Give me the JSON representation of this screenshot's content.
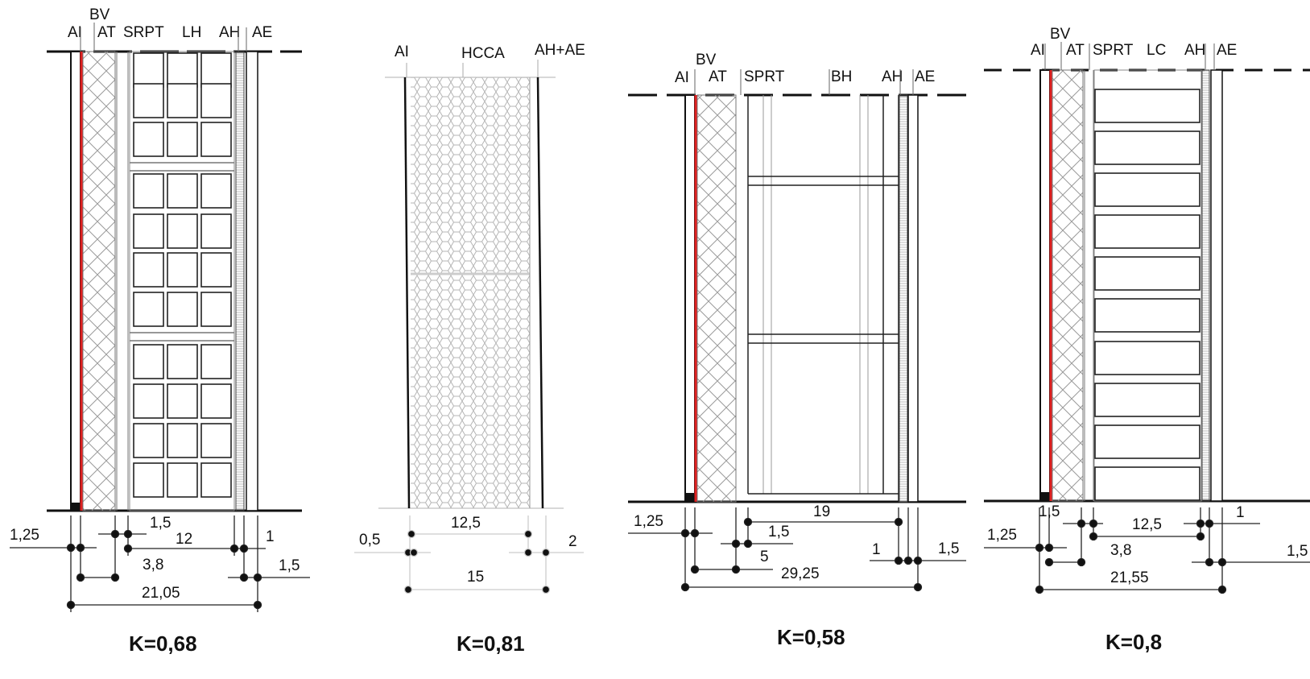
{
  "panels": [
    {
      "labels": [
        "AI",
        "BV",
        "AT",
        "SRPT",
        "LH",
        "AH",
        "AE"
      ],
      "dims": [
        "1,25",
        "1,5",
        "12",
        "1",
        "3,8",
        "1,5",
        "21,05"
      ],
      "k": "K=0,68"
    },
    {
      "labels": [
        "AI",
        "HCCA",
        "AH+AE"
      ],
      "dims": [
        "0,5",
        "12,5",
        "2",
        "15"
      ],
      "k": "K=0,81"
    },
    {
      "labels": [
        "AI",
        "BV",
        "AT",
        "SPRT",
        "BH",
        "AH",
        "AE"
      ],
      "dims": [
        "1,25",
        "19",
        "1,5",
        "5",
        "29,25",
        "1",
        "1,5"
      ],
      "k": "K=0,58"
    },
    {
      "labels": [
        "AI",
        "BV",
        "AT",
        "SPRT",
        "LC",
        "AH",
        "AE"
      ],
      "dims": [
        "1,25",
        "1,5",
        "12,5",
        "1",
        "3,8",
        "1,5",
        "21,55"
      ],
      "k": "K=0,8"
    }
  ],
  "colors": {
    "ink": "#111111",
    "red_layer": "#e02020",
    "grid": "#999999",
    "light": "#bbbbbb"
  }
}
